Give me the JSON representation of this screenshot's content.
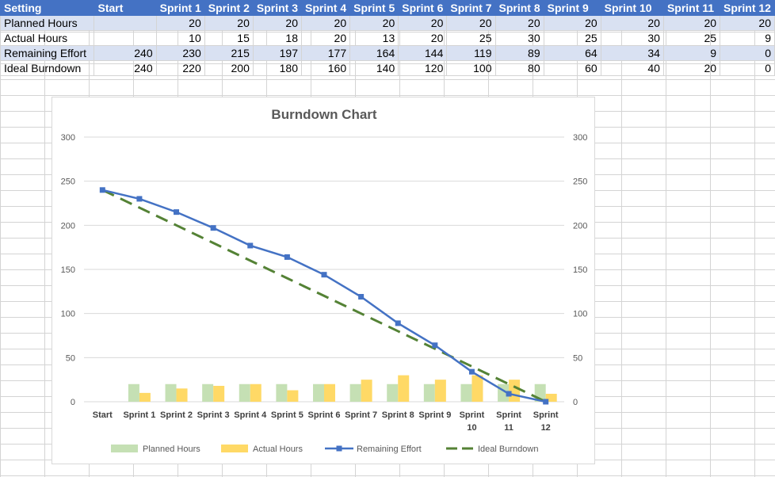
{
  "sheet": {
    "header": [
      "Setting",
      "Start",
      "Sprint 1",
      "Sprint 2",
      "Sprint 3",
      "Sprint 4",
      "Sprint 5",
      "Sprint 6",
      "Sprint 7",
      "Sprint 8",
      "Sprint 9",
      "Sprint 10",
      "Sprint 11",
      "Sprint 12"
    ],
    "header_display": [
      "Setting",
      "Start",
      "Sprint 1",
      "Sprint 2",
      "Sprint 3",
      "Sprint 4",
      "Sprint 5",
      "Sprint 6",
      "Sprint 7",
      "Sprint 8",
      "Sprint 9",
      "Sprint 10",
      "Sprint 11",
      "Sprint 12"
    ],
    "rows": [
      {
        "label": "Planned Hours",
        "cells": [
          "",
          "20",
          "20",
          "20",
          "20",
          "20",
          "20",
          "20",
          "20",
          "20",
          "20",
          "20",
          "20"
        ]
      },
      {
        "label": "Actual Hours",
        "cells": [
          "",
          "10",
          "15",
          "18",
          "20",
          "13",
          "20",
          "25",
          "30",
          "25",
          "30",
          "25",
          "9"
        ]
      },
      {
        "label": "Remaining Effort",
        "cells": [
          "240",
          "230",
          "215",
          "197",
          "177",
          "164",
          "144",
          "119",
          "89",
          "64",
          "34",
          "9",
          "0"
        ]
      },
      {
        "label": "Ideal Burndown",
        "cells": [
          "240",
          "220",
          "200",
          "180",
          "160",
          "140",
          "120",
          "100",
          "80",
          "60",
          "40",
          "20",
          "0"
        ]
      }
    ]
  },
  "colors": {
    "header_bg": "#4472c4",
    "band_bg": "#d9e1f2",
    "planned": "#c5e0b4",
    "actual": "#ffd966",
    "remaining": "#4472c4",
    "ideal": "#548235"
  },
  "chart_data": {
    "type": "bar",
    "title": "Burndown Chart",
    "categories": [
      "Start",
      "Sprint 1",
      "Sprint 2",
      "Sprint 3",
      "Sprint 4",
      "Sprint 5",
      "Sprint 6",
      "Sprint 7",
      "Sprint 8",
      "Sprint 9",
      "Sprint 10",
      "Sprint 11",
      "Sprint 12"
    ],
    "category_lines": [
      [
        "Start"
      ],
      [
        "Sprint 1"
      ],
      [
        "Sprint 2"
      ],
      [
        "Sprint 3"
      ],
      [
        "Sprint 4"
      ],
      [
        "Sprint 5"
      ],
      [
        "Sprint 6"
      ],
      [
        "Sprint 7"
      ],
      [
        "Sprint 8"
      ],
      [
        "Sprint 9"
      ],
      [
        "Sprint",
        "10"
      ],
      [
        "Sprint",
        "11"
      ],
      [
        "Sprint",
        "12"
      ]
    ],
    "ylim": [
      0,
      300
    ],
    "yticks": [
      0,
      50,
      100,
      150,
      200,
      250,
      300
    ],
    "secondary_ylim": [
      0,
      300
    ],
    "grid": true,
    "legend_position": "bottom",
    "series": [
      {
        "name": "Planned Hours",
        "kind": "bar",
        "axis": "primary",
        "values": [
          null,
          20,
          20,
          20,
          20,
          20,
          20,
          20,
          20,
          20,
          20,
          20,
          20
        ]
      },
      {
        "name": "Actual Hours",
        "kind": "bar",
        "axis": "primary",
        "values": [
          null,
          10,
          15,
          18,
          20,
          13,
          20,
          25,
          30,
          25,
          30,
          25,
          9
        ]
      },
      {
        "name": "Remaining Effort",
        "kind": "line",
        "marker": "square",
        "axis": "secondary",
        "values": [
          240,
          230,
          215,
          197,
          177,
          164,
          144,
          119,
          89,
          64,
          34,
          9,
          0
        ]
      },
      {
        "name": "Ideal Burndown",
        "kind": "line",
        "dash": "dashed",
        "axis": "secondary",
        "values": [
          240,
          220,
          200,
          180,
          160,
          140,
          120,
          100,
          80,
          60,
          40,
          20,
          0
        ]
      }
    ]
  }
}
